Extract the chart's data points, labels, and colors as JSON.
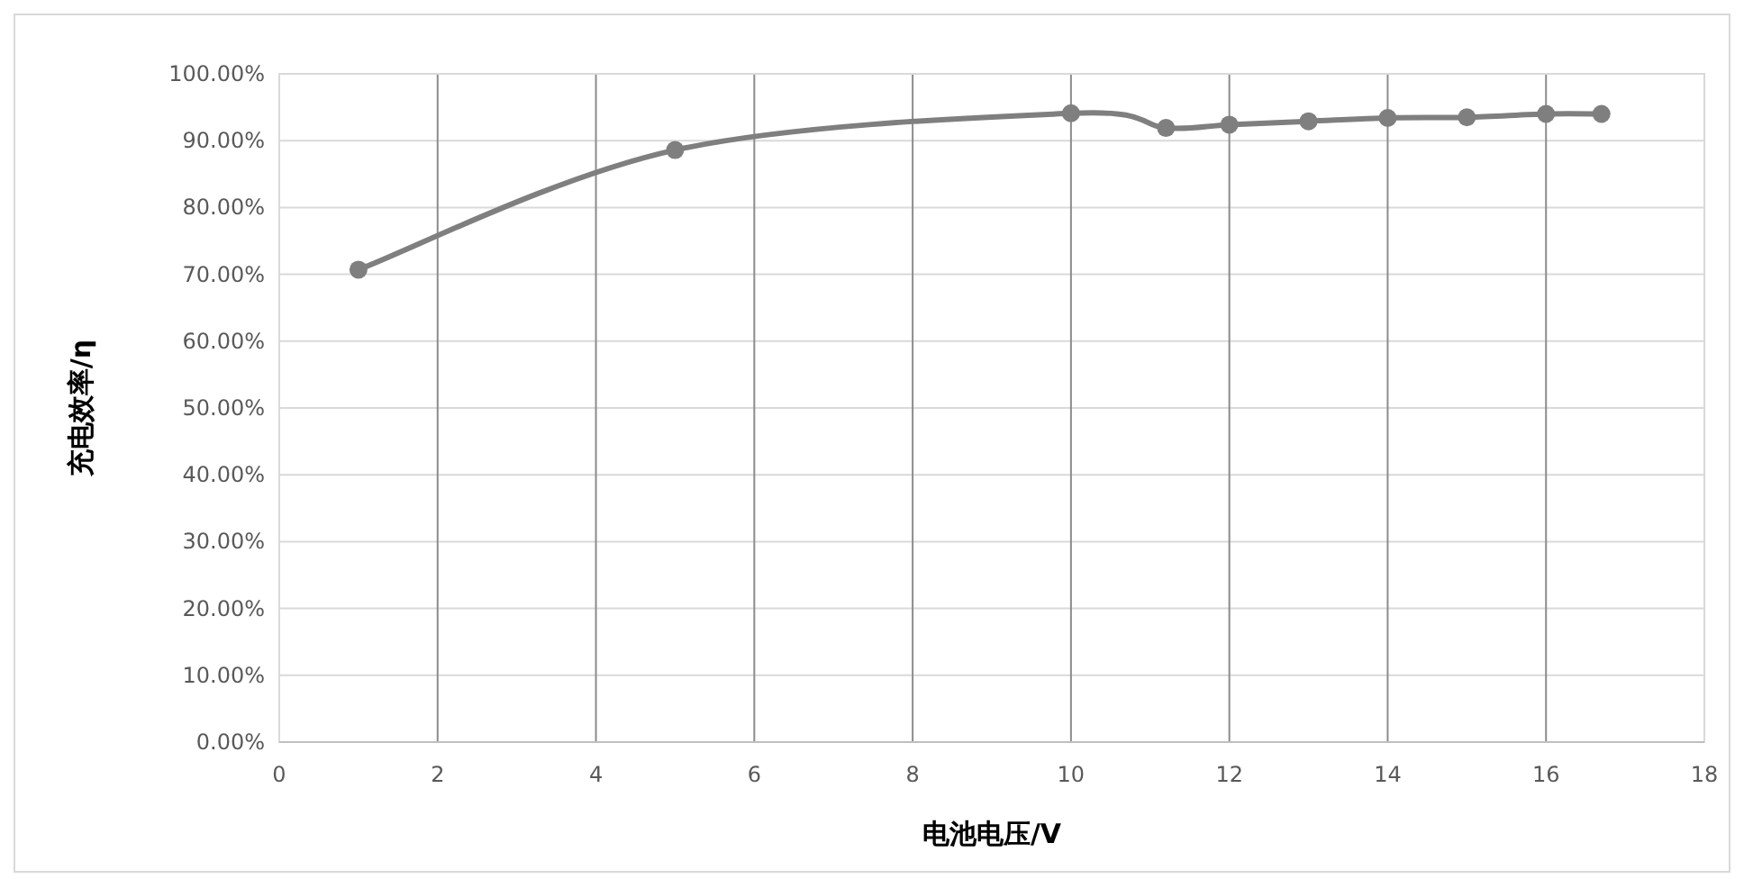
{
  "chart_data": {
    "type": "line",
    "xlabel": "电池电压/V",
    "ylabel": "充电效率/η",
    "x": [
      1,
      5,
      10,
      11.2,
      12,
      13,
      14,
      15,
      16,
      16.7
    ],
    "series": [
      {
        "color": "#7f7f7f",
        "values": [
          70.7,
          88.6,
          94.1,
          91.9,
          92.4,
          92.9,
          93.4,
          93.5,
          94.0,
          94.0
        ]
      }
    ],
    "xlim": [
      0,
      18
    ],
    "xticks": [
      0,
      2,
      4,
      6,
      8,
      10,
      12,
      14,
      16,
      18
    ],
    "ylim": [
      0,
      100
    ],
    "yticks": [
      {
        "value": 0,
        "label": "0.00%"
      },
      {
        "value": 10,
        "label": "10.00%"
      },
      {
        "value": 20,
        "label": "20.00%"
      },
      {
        "value": 30,
        "label": "30.00%"
      },
      {
        "value": 40,
        "label": "40.00%"
      },
      {
        "value": 50,
        "label": "50.00%"
      },
      {
        "value": 60,
        "label": "60.00%"
      },
      {
        "value": 70,
        "label": "70.00%"
      },
      {
        "value": 80,
        "label": "80.00%"
      },
      {
        "value": 90,
        "label": "90.00%"
      },
      {
        "value": 100,
        "label": "100.00%"
      }
    ],
    "grid": true,
    "marker": "circle",
    "line_style": "solid"
  }
}
